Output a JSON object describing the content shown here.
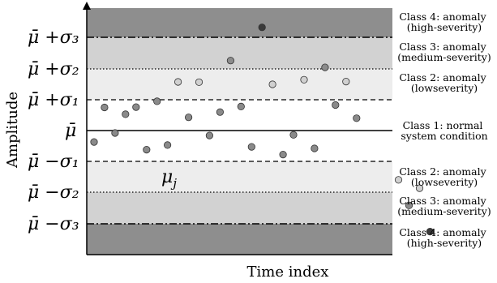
{
  "axes": {
    "x_title": "Time index",
    "y_title": "Amplitude"
  },
  "y_levels": [
    {
      "id": "mu-plus-sigma3",
      "text": "μ̄ +σ₃",
      "line_style": "dashdot"
    },
    {
      "id": "mu-plus-sigma2",
      "text": "μ̄ +σ₂",
      "line_style": "dotted"
    },
    {
      "id": "mu-plus-sigma1",
      "text": "μ̄ +σ₁",
      "line_style": "dashed"
    },
    {
      "id": "mu-bar",
      "text": "μ̄",
      "line_style": "solid"
    },
    {
      "id": "mu-minus-sigma1",
      "text": "μ̄ −σ₁",
      "line_style": "dashed"
    },
    {
      "id": "mu-minus-sigma2",
      "text": "μ̄ −σ₂",
      "line_style": "dotted"
    },
    {
      "id": "mu-minus-sigma3",
      "text": "μ̄ −σ₃",
      "line_style": "dashdot"
    }
  ],
  "bands": [
    {
      "id": "class4-top",
      "color": "#8e8e8e",
      "lines": [
        "Class 4: anomaly",
        "(high-severity)"
      ]
    },
    {
      "id": "class3-top",
      "color": "#d2d2d2",
      "lines": [
        "Class 3: anomaly",
        "(medium-severity)"
      ]
    },
    {
      "id": "class2-top",
      "color": "#ededed",
      "lines": [
        "Class 2: anomaly",
        "(lowseverity)"
      ]
    },
    {
      "id": "class1",
      "color": "#ffffff",
      "lines": [
        "Class 1: normal",
        "system condition"
      ]
    },
    {
      "id": "class2-bottom",
      "color": "#ededed",
      "lines": [
        "Class 2: anomaly",
        "(lowseverity)"
      ]
    },
    {
      "id": "class3-bottom",
      "color": "#d2d2d2",
      "lines": [
        "Class 3: anomaly",
        "(medium-severity)"
      ]
    },
    {
      "id": "class4-bottom",
      "color": "#8e8e8e",
      "lines": [
        "Class 4: anomaly",
        "(high-severity)"
      ]
    }
  ],
  "point_annotation": {
    "text": "μj"
  },
  "points": [
    {
      "t": 1,
      "z": -0.37,
      "cls": 1
    },
    {
      "t": 2,
      "z": 0.75,
      "cls": 1
    },
    {
      "t": 3,
      "z": -0.08,
      "cls": 1
    },
    {
      "t": 4,
      "z": 0.53,
      "cls": 1
    },
    {
      "t": 5,
      "z": 0.76,
      "cls": 1
    },
    {
      "t": 6,
      "z": -0.62,
      "cls": 1
    },
    {
      "t": 7,
      "z": 0.95,
      "cls": 1
    },
    {
      "t": 8,
      "z": -0.47,
      "cls": 1
    },
    {
      "t": 9,
      "z": 1.58,
      "cls": 2
    },
    {
      "t": 10,
      "z": 0.43,
      "cls": 1
    },
    {
      "t": 11,
      "z": 1.57,
      "cls": 2
    },
    {
      "t": 12,
      "z": -0.16,
      "cls": 1
    },
    {
      "t": 13,
      "z": 0.6,
      "cls": 1
    },
    {
      "t": 14,
      "z": 2.27,
      "cls": 3
    },
    {
      "t": 15,
      "z": 0.78,
      "cls": 1
    },
    {
      "t": 16,
      "z": -0.53,
      "cls": 1
    },
    {
      "t": 17,
      "z": 3.35,
      "cls": 4
    },
    {
      "t": 18,
      "z": 1.5,
      "cls": 2
    },
    {
      "t": 19,
      "z": -0.78,
      "cls": 1
    },
    {
      "t": 20,
      "z": -0.14,
      "cls": 1
    },
    {
      "t": 21,
      "z": 1.65,
      "cls": 2
    },
    {
      "t": 22,
      "z": -0.58,
      "cls": 1
    },
    {
      "t": 23,
      "z": 2.05,
      "cls": 3
    },
    {
      "t": 24,
      "z": 0.83,
      "cls": 1
    },
    {
      "t": 25,
      "z": 1.59,
      "cls": 2
    },
    {
      "t": 26,
      "z": 0.4,
      "cls": 1
    },
    {
      "t": 30,
      "z": -1.6,
      "cls": 2
    },
    {
      "t": 31,
      "z": -2.43,
      "cls": 3
    },
    {
      "t": 32,
      "z": -1.87,
      "cls": 2,
      "annotated": true
    },
    {
      "t": 33,
      "z": -3.28,
      "cls": 4
    }
  ],
  "class_colors": {
    "1": "#8a8a8a",
    "2": "#d0d0d0",
    "3": "#8c8c8c",
    "4": "#3a3a3a"
  }
}
